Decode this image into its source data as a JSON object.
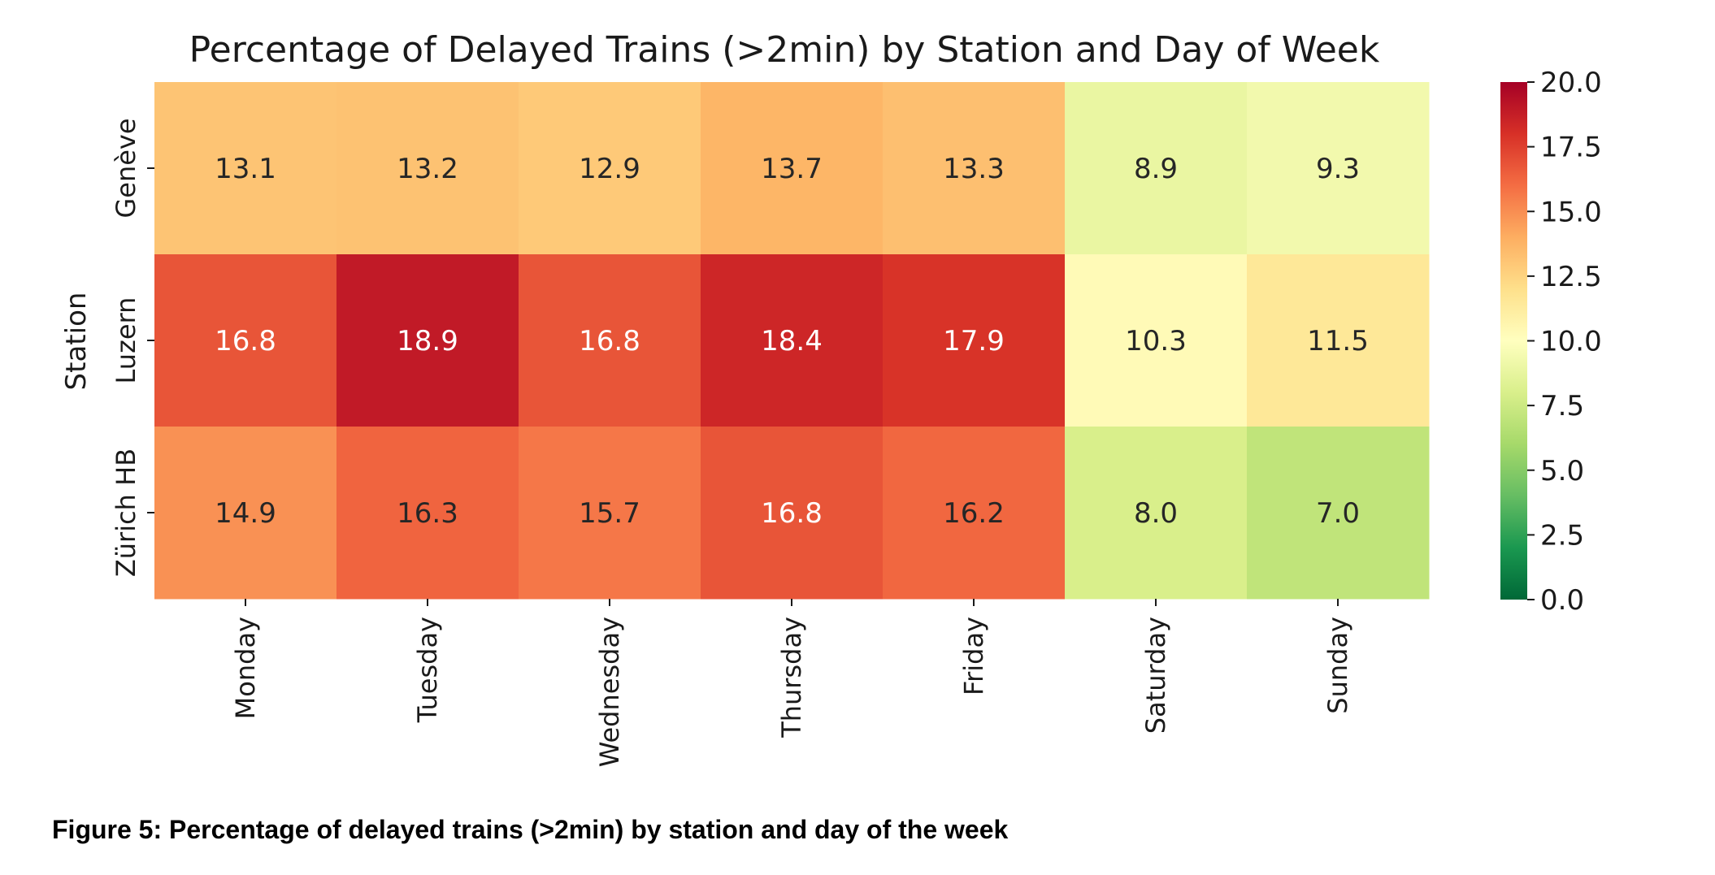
{
  "chart_data": {
    "type": "heatmap",
    "title": "Percentage of Delayed Trains (>2min) by Station and Day of Week",
    "ylabel": "Station",
    "xlabel": "",
    "rows": [
      "Genève",
      "Luzern",
      "Zürich HB"
    ],
    "columns": [
      "Monday",
      "Tuesday",
      "Wednesday",
      "Thursday",
      "Friday",
      "Saturday",
      "Sunday"
    ],
    "values": [
      [
        13.1,
        13.2,
        12.9,
        13.7,
        13.3,
        8.9,
        9.3
      ],
      [
        16.8,
        18.9,
        16.8,
        18.4,
        17.9,
        10.3,
        11.5
      ],
      [
        14.9,
        16.3,
        15.7,
        16.8,
        16.2,
        8.0,
        7.0
      ]
    ],
    "annotation_format": "1 decimal",
    "colormap": "RdYlGn_r",
    "colorbar": {
      "vmin": 0.0,
      "vmax": 20.0,
      "ticks": [
        "0.0",
        "2.5",
        "5.0",
        "7.5",
        "10.0",
        "12.5",
        "15.0",
        "17.5",
        "20.0"
      ]
    }
  },
  "caption": "Figure 5: Percentage of delayed trains (>2min) by station and day of the week"
}
